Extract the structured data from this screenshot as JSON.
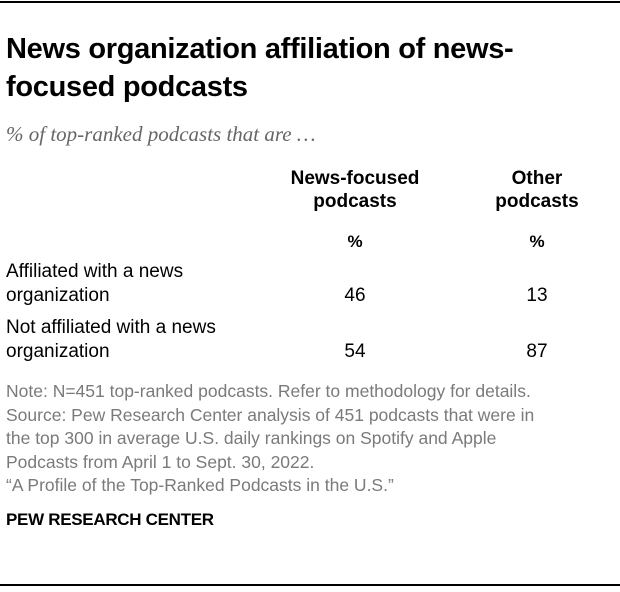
{
  "title": "News organization affiliation of news-focused podcasts",
  "subtitle": "% of top-ranked podcasts that are …",
  "chart_data": {
    "type": "table",
    "columns": [
      "News-focused podcasts",
      "Other podcasts"
    ],
    "units": [
      "%",
      "%"
    ],
    "rows": [
      {
        "label": "Affiliated with a news organization",
        "values": [
          "46",
          "13"
        ]
      },
      {
        "label": "Not affiliated with a news organization",
        "values": [
          "54",
          "87"
        ]
      }
    ]
  },
  "header": {
    "col1_line1": "News-focused",
    "col1_line2": "podcasts",
    "col2_line1": "Other",
    "col2_line2": "podcasts"
  },
  "rows_display": [
    {
      "line1": "Affiliated with a news",
      "line2": "organization"
    },
    {
      "line1": "Not affiliated with a news",
      "line2": "organization"
    }
  ],
  "notes": [
    "Note: N=451 top-ranked podcasts. Refer to methodology for details.",
    "Source: Pew Research Center analysis of 451 podcasts that were in",
    "the top 300 in average U.S. daily rankings on Spotify and Apple",
    "Podcasts from April 1 to Sept. 30, 2022.",
    "“A Profile of the Top-Ranked Podcasts in the U.S.”"
  ],
  "brand": "PEW RESEARCH CENTER"
}
